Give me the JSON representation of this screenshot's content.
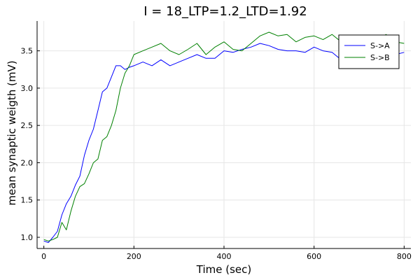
{
  "chart_data": {
    "type": "line",
    "title": "I = 18_LTP=1.2_LTD=1.92",
    "xlabel": "Time (sec)",
    "ylabel": "mean synaptic weigth (mV)",
    "xlim": [
      -15,
      815
    ],
    "ylim": [
      0.85,
      3.9
    ],
    "xticks": [
      0,
      200,
      400,
      600,
      800
    ],
    "yticks": [
      1.0,
      1.5,
      2.0,
      2.5,
      3.0,
      3.5
    ],
    "ytick_labels": [
      "1.0",
      "1.5",
      "2.0",
      "2.5",
      "3.0",
      "3.5"
    ],
    "grid": true,
    "legend_position": "top-right",
    "series": [
      {
        "name": "S->A",
        "color": "#0000ff",
        "x": [
          0,
          10,
          20,
          30,
          40,
          50,
          60,
          70,
          80,
          90,
          100,
          110,
          120,
          130,
          140,
          150,
          160,
          170,
          180,
          190,
          200,
          220,
          240,
          260,
          280,
          300,
          320,
          340,
          360,
          380,
          400,
          420,
          440,
          460,
          480,
          500,
          520,
          540,
          560,
          580,
          600,
          620,
          640,
          660,
          680,
          700,
          720,
          740,
          760,
          780,
          800
        ],
        "y": [
          0.95,
          0.93,
          1.0,
          1.08,
          1.3,
          1.45,
          1.55,
          1.7,
          1.82,
          2.1,
          2.3,
          2.45,
          2.7,
          2.95,
          3.0,
          3.15,
          3.3,
          3.3,
          3.25,
          3.28,
          3.3,
          3.35,
          3.3,
          3.38,
          3.3,
          3.35,
          3.4,
          3.45,
          3.4,
          3.4,
          3.5,
          3.48,
          3.52,
          3.55,
          3.6,
          3.57,
          3.52,
          3.5,
          3.5,
          3.48,
          3.55,
          3.5,
          3.48,
          3.38,
          3.4,
          3.4,
          3.38,
          3.42,
          3.45,
          3.45,
          3.48
        ]
      },
      {
        "name": "S->B",
        "color": "#008000",
        "x": [
          0,
          10,
          20,
          30,
          40,
          50,
          60,
          70,
          80,
          90,
          100,
          110,
          120,
          130,
          140,
          150,
          160,
          170,
          180,
          190,
          200,
          220,
          240,
          260,
          280,
          300,
          320,
          340,
          360,
          380,
          400,
          420,
          440,
          460,
          480,
          500,
          520,
          540,
          560,
          580,
          600,
          620,
          640,
          660,
          680,
          700,
          720,
          740,
          760,
          780,
          800
        ],
        "y": [
          0.97,
          0.95,
          0.97,
          1.0,
          1.2,
          1.1,
          1.35,
          1.55,
          1.68,
          1.72,
          1.85,
          2.0,
          2.05,
          2.3,
          2.35,
          2.5,
          2.7,
          3.0,
          3.2,
          3.3,
          3.45,
          3.5,
          3.55,
          3.6,
          3.5,
          3.45,
          3.52,
          3.6,
          3.45,
          3.55,
          3.62,
          3.52,
          3.5,
          3.6,
          3.7,
          3.75,
          3.7,
          3.72,
          3.62,
          3.68,
          3.7,
          3.65,
          3.72,
          3.62,
          3.6,
          3.55,
          3.62,
          3.65,
          3.72,
          3.62,
          3.6
        ]
      }
    ]
  }
}
